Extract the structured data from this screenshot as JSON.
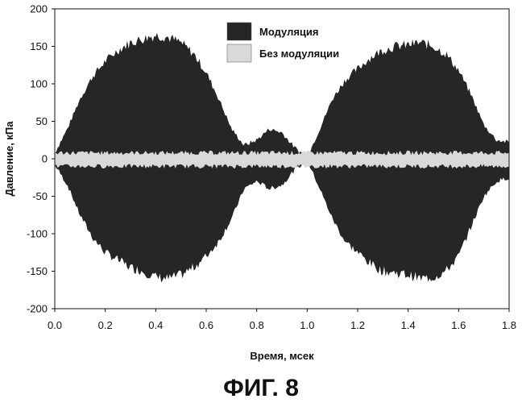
{
  "chart_data": {
    "type": "area",
    "xlabel": "Время, мсек",
    "ylabel": "Давление, кПа",
    "xlim": [
      0.0,
      1.8
    ],
    "ylim": [
      -200,
      200
    ],
    "x_ticks": [
      "0.0",
      "0.2",
      "0.4",
      "0.6",
      "0.8",
      "1.0",
      "1.2",
      "1.4",
      "1.6",
      "1.8"
    ],
    "y_ticks": [
      "200",
      "150",
      "100",
      "50",
      "0",
      "-50",
      "-100",
      "-150",
      "-200"
    ],
    "grid": false,
    "legend_position": "top-right",
    "series": [
      {
        "name": "Модуляция",
        "color": "#262626",
        "x": [
          0.0,
          0.05,
          0.1,
          0.15,
          0.2,
          0.25,
          0.3,
          0.35,
          0.4,
          0.45,
          0.5,
          0.55,
          0.6,
          0.65,
          0.7,
          0.75,
          0.8,
          0.85,
          0.9,
          0.95,
          1.0,
          1.05,
          1.1,
          1.15,
          1.2,
          1.25,
          1.3,
          1.35,
          1.4,
          1.45,
          1.5,
          1.55,
          1.6,
          1.65,
          1.7,
          1.75,
          1.8
        ],
        "upper": [
          8,
          40,
          80,
          110,
          130,
          145,
          155,
          160,
          165,
          162,
          155,
          140,
          115,
          80,
          40,
          18,
          25,
          40,
          35,
          15,
          2,
          40,
          80,
          105,
          120,
          135,
          145,
          150,
          152,
          155,
          150,
          140,
          118,
          85,
          45,
          25,
          22
        ],
        "lower": [
          -8,
          -35,
          -75,
          -105,
          -125,
          -135,
          -145,
          -150,
          -158,
          -160,
          -155,
          -145,
          -130,
          -110,
          -80,
          -40,
          -30,
          -40,
          -35,
          -15,
          -2,
          -40,
          -80,
          -110,
          -125,
          -140,
          -150,
          -152,
          -155,
          -160,
          -158,
          -150,
          -130,
          -90,
          -50,
          -30,
          -25
        ]
      },
      {
        "name": "Без модуляции",
        "color": "#d9d9d9",
        "x": [
          0.0,
          1.8
        ],
        "upper": [
          8,
          8
        ],
        "lower": [
          -10,
          -10
        ]
      }
    ]
  },
  "figure": {
    "caption": "ФИГ. 8"
  }
}
